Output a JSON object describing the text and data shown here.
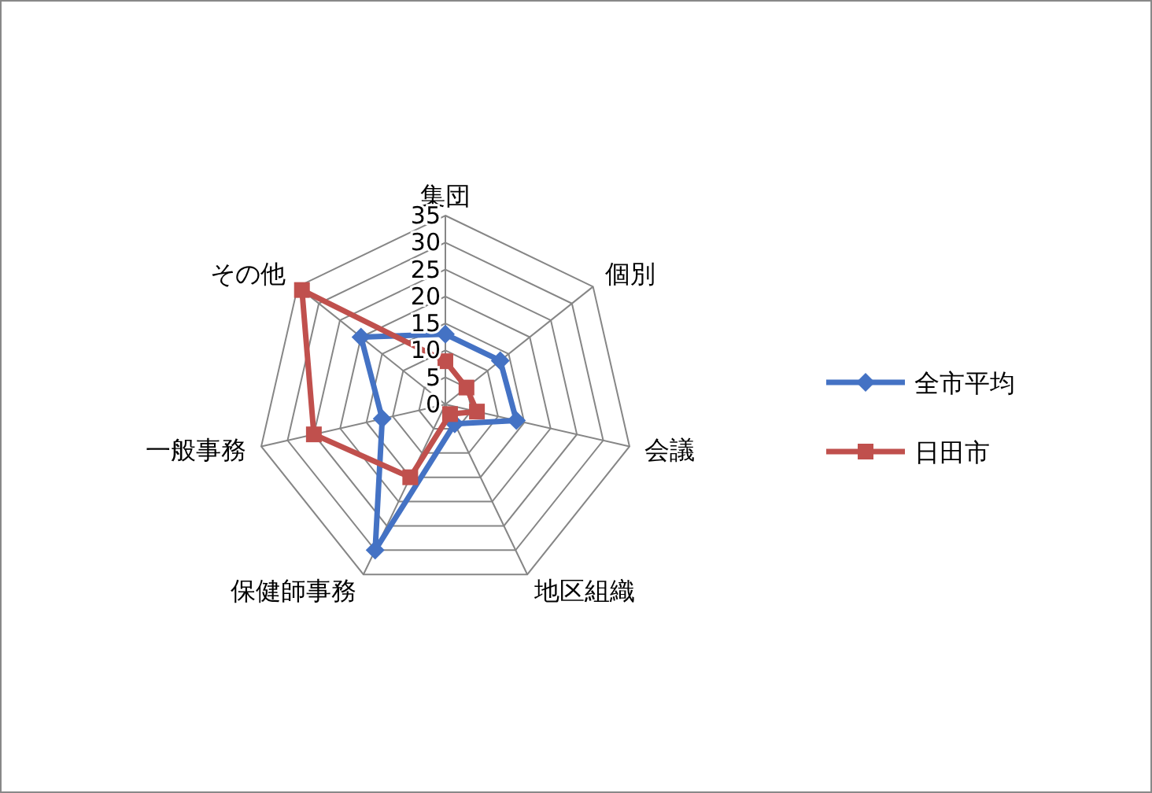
{
  "chart_data": {
    "type": "radar",
    "categories": [
      "集団",
      "個別",
      "会議",
      "地区組織",
      "保健師事務",
      "一般事務",
      "その他"
    ],
    "series": [
      {
        "name": "全市平均",
        "color": "#4472c4",
        "marker": "diamond",
        "values": [
          13,
          13,
          13.5,
          4,
          30,
          12,
          20
        ]
      },
      {
        "name": "日田市",
        "color": "#c0504d",
        "marker": "square",
        "values": [
          8,
          5,
          6,
          2,
          15,
          25,
          34
        ]
      }
    ],
    "ylim": [
      0,
      35
    ],
    "yticks": [
      0,
      5,
      10,
      15,
      20,
      25,
      30,
      35
    ],
    "grid": true,
    "legend": "right"
  }
}
